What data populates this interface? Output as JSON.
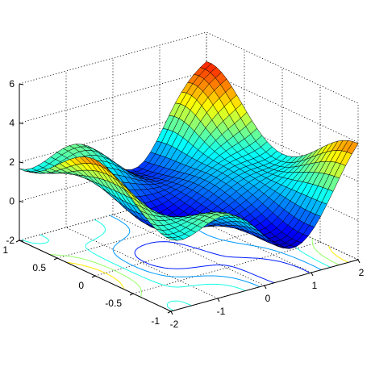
{
  "chart_data": {
    "type": "surface+contour",
    "title": "",
    "xlabel": "",
    "ylabel": "",
    "zlabel": "",
    "function": "z = sin(x) * cos(2*y) + x^2 / 2 + ... (peaks-like surface, read off the plot)",
    "x_range": [
      -2,
      2
    ],
    "y_range": [
      -1,
      1
    ],
    "z_range": [
      -2,
      6
    ],
    "x_ticks": [
      -2,
      -1,
      0,
      1,
      2
    ],
    "x_tick_labels": [
      "-2",
      "-1",
      "0",
      "1",
      "2"
    ],
    "y_ticks": [
      -1,
      -0.5,
      0,
      0.5,
      1
    ],
    "y_tick_labels": [
      "-1",
      "-0.5",
      "0",
      "0.5",
      "1"
    ],
    "z_ticks": [
      -2,
      0,
      2,
      4,
      6
    ],
    "z_tick_labels": [
      "-2",
      "0",
      "2",
      "4",
      "6"
    ],
    "grid": true,
    "colormap": "jet",
    "colormap_stops": [
      "#00008f",
      "#0000ff",
      "#00ffff",
      "#ffff00",
      "#ff0000",
      "#800000"
    ],
    "mesh_resolution": 30,
    "contour_levels": [
      -0.8,
      0,
      0.8,
      1.6,
      2.4,
      3.2,
      4.0
    ]
  }
}
